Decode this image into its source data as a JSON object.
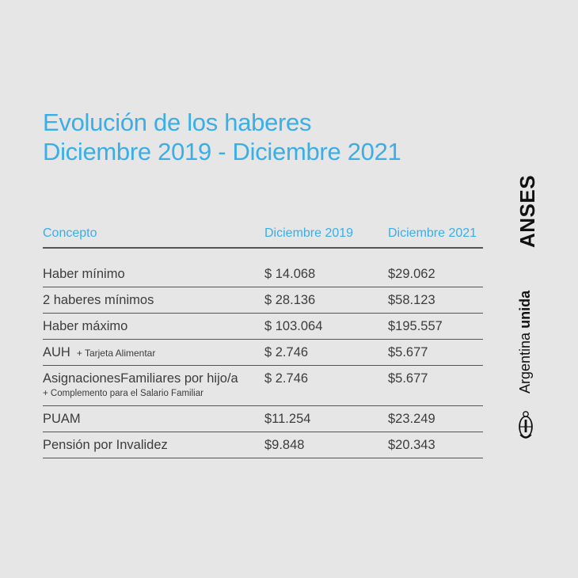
{
  "title": {
    "line1": "Evolución de los haberes",
    "line2": "Diciembre 2019 - Diciembre 2021"
  },
  "table": {
    "headers": [
      "Concepto",
      "Diciembre 2019",
      "Diciembre 2021"
    ],
    "rows": [
      {
        "concept": "Haber mínimo",
        "note": "",
        "subnote": "",
        "v2019": "$ 14.068",
        "v2021": "$29.062"
      },
      {
        "concept": "2 haberes mínimos",
        "note": "",
        "subnote": "",
        "v2019": "$ 28.136",
        "v2021": "$58.123"
      },
      {
        "concept": "Haber máximo",
        "note": "",
        "subnote": "",
        "v2019": "$ 103.064",
        "v2021": "$195.557"
      },
      {
        "concept": "AUH",
        "note": "+ Tarjeta Alimentar",
        "subnote": "",
        "v2019": "$ 2.746",
        "v2021": "$5.677"
      },
      {
        "concept": "AsignacionesFamiliares por hijo/a",
        "note": "",
        "subnote": "+ Complemento para el Salario Familiar",
        "v2019": "$ 2.746",
        "v2021": "$5.677"
      },
      {
        "concept": "PUAM",
        "note": "",
        "subnote": "",
        "v2019": "$11.254",
        "v2021": "$23.249"
      },
      {
        "concept": "Pensión por Invalidez",
        "note": "",
        "subnote": "",
        "v2019": "$9.848",
        "v2021": "$20.343"
      }
    ]
  },
  "branding": {
    "anses": "ANSES",
    "argentina": "Argentina",
    "unida": "unida"
  },
  "colors": {
    "accent": "#3aaee6",
    "background": "#e6e6e6",
    "text": "#3c3c3c"
  }
}
